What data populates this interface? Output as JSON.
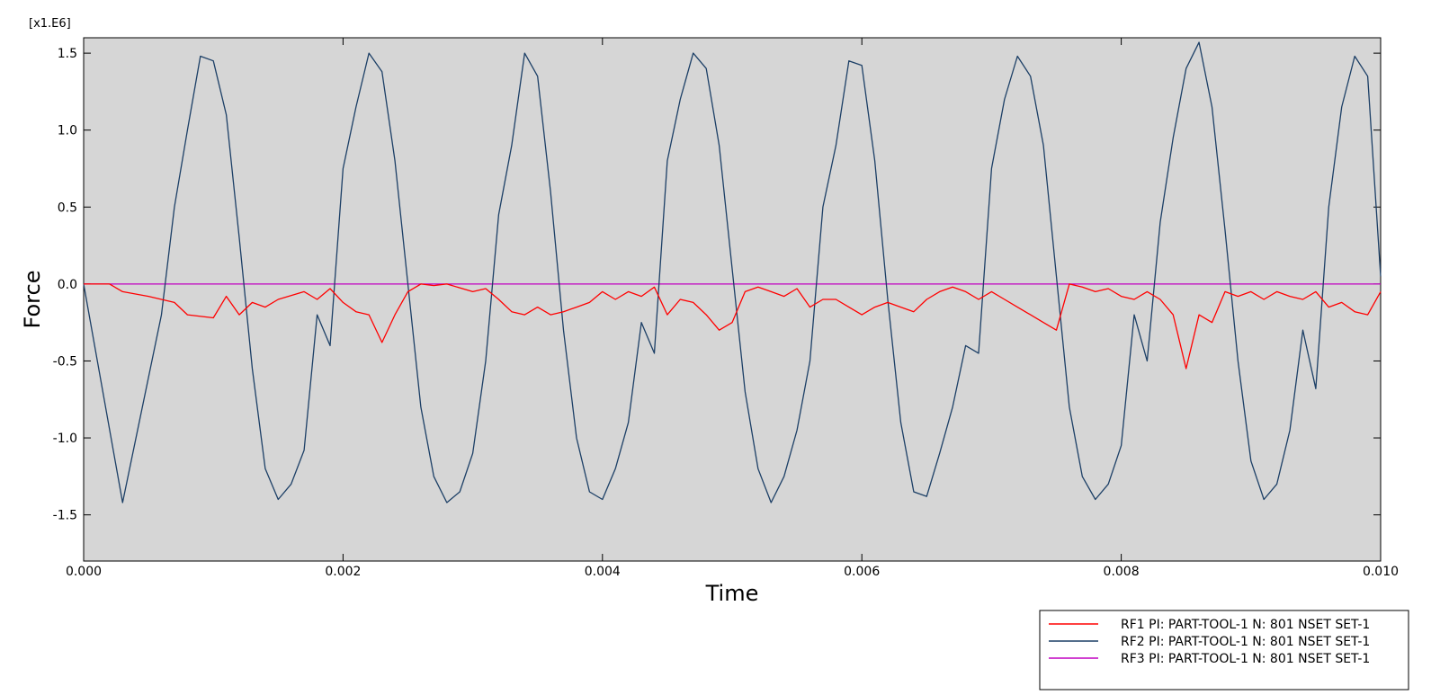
{
  "chart_data": {
    "type": "line",
    "title": "",
    "xlabel": "Time",
    "ylabel": "Force",
    "y_multiplier_label": "[x1.E6]",
    "xlim": [
      0.0,
      0.01
    ],
    "ylim": [
      -1.8,
      1.6
    ],
    "x_ticks": [
      0.0,
      0.002,
      0.004,
      0.006,
      0.008,
      0.01
    ],
    "x_tick_labels": [
      "0.000",
      "0.002",
      "0.004",
      "0.006",
      "0.008",
      "0.010"
    ],
    "y_ticks": [
      1.5,
      1.0,
      0.5,
      0.0,
      -0.5,
      -1.0,
      -1.5
    ],
    "y_tick_labels": [
      "1.5",
      "1.0",
      "0.5",
      "0.0",
      "-0.5",
      "-1.0",
      "-1.5"
    ],
    "grid": false,
    "plot_background": "#d6d6d6",
    "legend_position": "bottom-right, below plot",
    "series": [
      {
        "name": "RF1 PI: PART-TOOL-1 N: 801 NSET SET-1",
        "color": "#ff0000",
        "x": [
          0.0,
          0.0002,
          0.0003,
          0.0005,
          0.0007,
          0.0008,
          0.001,
          0.0011,
          0.0012,
          0.0013,
          0.0014,
          0.0015,
          0.0017,
          0.0018,
          0.0019,
          0.002,
          0.0021,
          0.0022,
          0.0023,
          0.0024,
          0.0025,
          0.0026,
          0.0027,
          0.0028,
          0.003,
          0.0031,
          0.0032,
          0.0033,
          0.0034,
          0.0035,
          0.0036,
          0.0037,
          0.0038,
          0.0039,
          0.004,
          0.0041,
          0.0042,
          0.0043,
          0.0044,
          0.0045,
          0.0046,
          0.0047,
          0.0048,
          0.0049,
          0.005,
          0.0051,
          0.0052,
          0.0053,
          0.0054,
          0.0055,
          0.0056,
          0.0057,
          0.0058,
          0.0059,
          0.006,
          0.0061,
          0.0062,
          0.0063,
          0.0064,
          0.0065,
          0.0066,
          0.0067,
          0.0068,
          0.0069,
          0.007,
          0.0071,
          0.0072,
          0.0073,
          0.0074,
          0.0075,
          0.0076,
          0.0077,
          0.0078,
          0.0079,
          0.008,
          0.0081,
          0.0082,
          0.0083,
          0.0084,
          0.0085,
          0.0086,
          0.0087,
          0.0088,
          0.0089,
          0.009,
          0.0091,
          0.0092,
          0.0093,
          0.0094,
          0.0095,
          0.0096,
          0.0097,
          0.0098,
          0.0099,
          0.01
        ],
        "values": [
          0.0,
          0.0,
          -0.05,
          -0.08,
          -0.12,
          -0.2,
          -0.22,
          -0.08,
          -0.2,
          -0.12,
          -0.15,
          -0.1,
          -0.05,
          -0.1,
          -0.03,
          -0.12,
          -0.18,
          -0.2,
          -0.38,
          -0.2,
          -0.05,
          0.0,
          -0.01,
          0.0,
          -0.05,
          -0.03,
          -0.1,
          -0.18,
          -0.2,
          -0.15,
          -0.2,
          -0.18,
          -0.15,
          -0.12,
          -0.05,
          -0.1,
          -0.05,
          -0.08,
          -0.02,
          -0.2,
          -0.1,
          -0.12,
          -0.2,
          -0.3,
          -0.25,
          -0.05,
          -0.02,
          -0.05,
          -0.08,
          -0.03,
          -0.15,
          -0.1,
          -0.1,
          -0.15,
          -0.2,
          -0.15,
          -0.12,
          -0.15,
          -0.18,
          -0.1,
          -0.05,
          -0.02,
          -0.05,
          -0.1,
          -0.05,
          -0.1,
          -0.15,
          -0.2,
          -0.25,
          -0.3,
          0.0,
          -0.02,
          -0.05,
          -0.03,
          -0.08,
          -0.1,
          -0.05,
          -0.1,
          -0.2,
          -0.55,
          -0.2,
          -0.25,
          -0.05,
          -0.08,
          -0.05,
          -0.1,
          -0.05,
          -0.08,
          -0.1,
          -0.05,
          -0.15,
          -0.12,
          -0.18,
          -0.2,
          -0.05
        ]
      },
      {
        "name": "RF2 PI: PART-TOOL-1 N: 801 NSET SET-1",
        "color": "#1c3f66",
        "x": [
          0.0,
          0.0003,
          0.0006,
          0.0007,
          0.0008,
          0.0009,
          0.001,
          0.0011,
          0.0012,
          0.0013,
          0.0014,
          0.0015,
          0.0016,
          0.0017,
          0.0018,
          0.0019,
          0.002,
          0.0021,
          0.0022,
          0.0023,
          0.0024,
          0.0025,
          0.0026,
          0.0027,
          0.0028,
          0.0029,
          0.003,
          0.0031,
          0.0032,
          0.0033,
          0.0034,
          0.0035,
          0.0036,
          0.0037,
          0.0038,
          0.0039,
          0.004,
          0.0041,
          0.0042,
          0.0043,
          0.0044,
          0.0045,
          0.0046,
          0.0047,
          0.0048,
          0.0049,
          0.005,
          0.0051,
          0.0052,
          0.0053,
          0.0054,
          0.0055,
          0.0056,
          0.0057,
          0.0058,
          0.0059,
          0.006,
          0.0061,
          0.0062,
          0.0063,
          0.0064,
          0.0065,
          0.0066,
          0.0067,
          0.0068,
          0.0069,
          0.007,
          0.0071,
          0.0072,
          0.0073,
          0.0074,
          0.0075,
          0.0076,
          0.0077,
          0.0078,
          0.0079,
          0.008,
          0.0081,
          0.0082,
          0.0083,
          0.0084,
          0.0085,
          0.0086,
          0.0087,
          0.0088,
          0.0089,
          0.009,
          0.0091,
          0.0092,
          0.0093,
          0.0094,
          0.0095,
          0.0096,
          0.0097,
          0.0098,
          0.0099,
          0.01
        ],
        "values": [
          0.0,
          -1.42,
          -0.2,
          0.5,
          1.0,
          1.48,
          1.45,
          1.1,
          0.3,
          -0.55,
          -1.2,
          -1.4,
          -1.3,
          -1.08,
          -0.2,
          -0.4,
          0.75,
          1.15,
          1.5,
          1.38,
          0.8,
          0.0,
          -0.8,
          -1.25,
          -1.42,
          -1.35,
          -1.1,
          -0.5,
          0.45,
          0.9,
          1.5,
          1.35,
          0.6,
          -0.3,
          -1.0,
          -1.35,
          -1.4,
          -1.2,
          -0.9,
          -0.25,
          -0.45,
          0.8,
          1.2,
          1.5,
          1.4,
          0.9,
          0.1,
          -0.7,
          -1.2,
          -1.42,
          -1.25,
          -0.95,
          -0.5,
          0.5,
          0.9,
          1.45,
          1.42,
          0.8,
          -0.1,
          -0.9,
          -1.35,
          -1.38,
          -1.1,
          -0.8,
          -0.4,
          -0.45,
          0.75,
          1.2,
          1.48,
          1.35,
          0.9,
          0.05,
          -0.8,
          -1.25,
          -1.4,
          -1.3,
          -1.05,
          -0.2,
          -0.5,
          0.4,
          0.95,
          1.4,
          1.57,
          1.15,
          0.35,
          -0.5,
          -1.15,
          -1.4,
          -1.3,
          -0.95,
          -0.3,
          -0.68,
          0.5,
          1.15,
          1.48,
          1.35,
          0.05
        ]
      },
      {
        "name": "RF3 PI: PART-TOOL-1 N: 801 NSET SET-1",
        "color": "#c000c0",
        "x": [
          0.0,
          0.01
        ],
        "values": [
          0.0,
          0.0
        ]
      }
    ]
  }
}
